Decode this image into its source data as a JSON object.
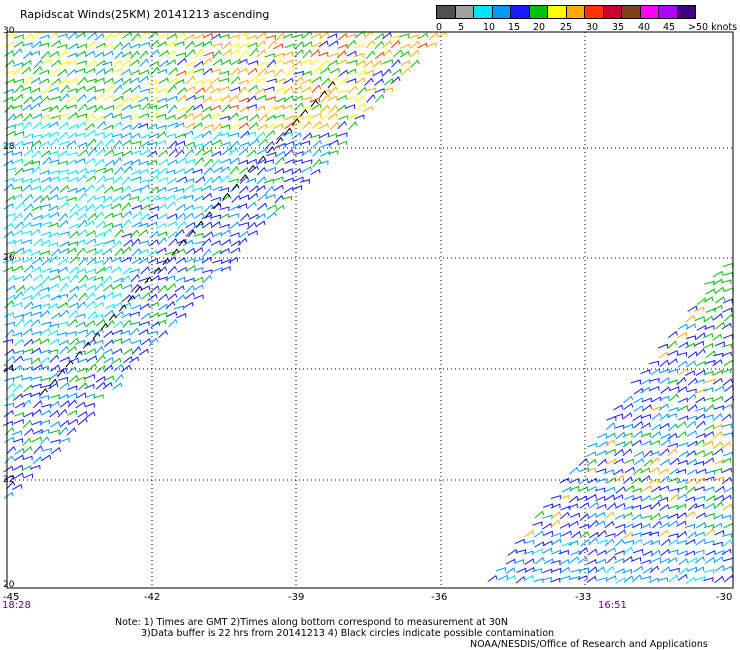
{
  "title": "Rapidscat Winds(25KM) 20141213 ascending",
  "legend": {
    "colors": [
      "#505050",
      "#a0a0a0",
      "#00e5ff",
      "#0099ff",
      "#1a1aff",
      "#00c000",
      "#ffff00",
      "#ffaa00",
      "#ff3300",
      "#cc0033",
      "#80401a",
      "#ff00ff",
      "#b000ff",
      "#40007f"
    ],
    "labels": [
      "0",
      "5",
      "10",
      "15",
      "20",
      "25",
      "30",
      "35",
      "40",
      "45",
      ">50 knots"
    ]
  },
  "map": {
    "y_ticks": [
      "30",
      "28",
      "26",
      "24",
      "22",
      "20"
    ],
    "x_ticks": [
      "-45",
      "-42",
      "-39",
      "-36",
      "-33",
      "-30"
    ],
    "lat_range": [
      20,
      30
    ],
    "lon_range": [
      -45,
      -30
    ]
  },
  "times": {
    "left": "18:28",
    "right": "16:51"
  },
  "notes": {
    "line1": "Note: 1) Times are GMT 2)Times along bottom correspond to measurement at 30N",
    "line2": "3)Data buffer is 22 hrs from 20141213 4) Black circles indicate possible contamination",
    "line3": "NOAA/NESDIS/Office of Research and Applications"
  }
}
